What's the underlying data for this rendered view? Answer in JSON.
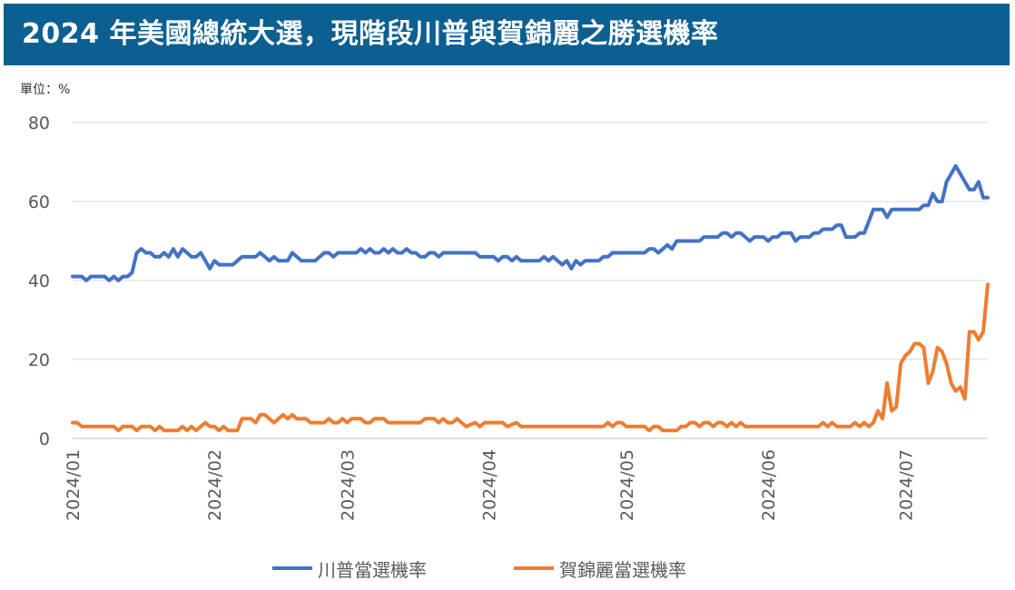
{
  "header": {
    "title": "2024 年美國總統大選，現階段川普與賀錦麗之勝選機率",
    "unit": "單位：%"
  },
  "colors": {
    "header_bg": "#0b5f91",
    "trump": "#4472c4",
    "harris": "#ed7d31"
  },
  "legend": {
    "trump": "川普當選機率",
    "harris": "賀錦麗當選機率"
  },
  "chart_data": {
    "type": "line",
    "x_unit": "day",
    "x_start": "2024/01/01",
    "x_ticks": [
      {
        "label": "2024/01",
        "day": 0
      },
      {
        "label": "2024/02",
        "day": 31
      },
      {
        "label": "2024/03",
        "day": 60
      },
      {
        "label": "2024/04",
        "day": 91
      },
      {
        "label": "2024/05",
        "day": 121
      },
      {
        "label": "2024/06",
        "day": 152
      },
      {
        "label": "2024/07",
        "day": 182
      }
    ],
    "ylim": [
      0,
      80
    ],
    "y_ticks": [
      0,
      20,
      40,
      60,
      80
    ],
    "grid": true,
    "legend_position": "bottom",
    "series": [
      {
        "name": "川普當選機率",
        "color": "#4472c4",
        "points": [
          [
            0,
            41
          ],
          [
            2,
            41
          ],
          [
            3,
            40
          ],
          [
            4,
            41
          ],
          [
            7,
            41
          ],
          [
            8,
            40
          ],
          [
            9,
            41
          ],
          [
            10,
            40
          ],
          [
            11,
            41
          ],
          [
            12,
            41
          ],
          [
            13,
            42
          ],
          [
            14,
            47
          ],
          [
            15,
            48
          ],
          [
            16,
            47
          ],
          [
            17,
            47
          ],
          [
            18,
            46
          ],
          [
            19,
            46
          ],
          [
            20,
            47
          ],
          [
            21,
            46
          ],
          [
            22,
            48
          ],
          [
            23,
            46
          ],
          [
            24,
            48
          ],
          [
            25,
            47
          ],
          [
            26,
            46
          ],
          [
            27,
            46
          ],
          [
            28,
            47
          ],
          [
            29,
            45
          ],
          [
            30,
            43
          ],
          [
            31,
            45
          ],
          [
            32,
            44
          ],
          [
            35,
            44
          ],
          [
            36,
            45
          ],
          [
            37,
            46
          ],
          [
            40,
            46
          ],
          [
            41,
            47
          ],
          [
            42,
            46
          ],
          [
            43,
            45
          ],
          [
            44,
            46
          ],
          [
            45,
            45
          ],
          [
            47,
            45
          ],
          [
            48,
            47
          ],
          [
            49,
            46
          ],
          [
            50,
            45
          ],
          [
            53,
            45
          ],
          [
            54,
            46
          ],
          [
            55,
            47
          ],
          [
            56,
            47
          ],
          [
            57,
            46
          ],
          [
            58,
            47
          ],
          [
            62,
            47
          ],
          [
            63,
            48
          ],
          [
            64,
            47
          ],
          [
            65,
            48
          ],
          [
            66,
            47
          ],
          [
            67,
            47
          ],
          [
            68,
            48
          ],
          [
            69,
            47
          ],
          [
            70,
            48
          ],
          [
            71,
            47
          ],
          [
            72,
            47
          ],
          [
            73,
            48
          ],
          [
            74,
            47
          ],
          [
            75,
            47
          ],
          [
            76,
            46
          ],
          [
            77,
            46
          ],
          [
            78,
            47
          ],
          [
            79,
            47
          ],
          [
            80,
            46
          ],
          [
            81,
            47
          ],
          [
            88,
            47
          ],
          [
            89,
            46
          ],
          [
            92,
            46
          ],
          [
            93,
            45
          ],
          [
            94,
            46
          ],
          [
            95,
            46
          ],
          [
            96,
            45
          ],
          [
            97,
            46
          ],
          [
            98,
            45
          ],
          [
            102,
            45
          ],
          [
            103,
            46
          ],
          [
            104,
            45
          ],
          [
            105,
            46
          ],
          [
            106,
            45
          ],
          [
            107,
            44
          ],
          [
            108,
            45
          ],
          [
            109,
            43
          ],
          [
            110,
            45
          ],
          [
            111,
            44
          ],
          [
            112,
            45
          ],
          [
            115,
            45
          ],
          [
            116,
            46
          ],
          [
            117,
            46
          ],
          [
            118,
            47
          ],
          [
            125,
            47
          ],
          [
            126,
            48
          ],
          [
            127,
            48
          ],
          [
            128,
            47
          ],
          [
            129,
            48
          ],
          [
            130,
            49
          ],
          [
            131,
            48
          ],
          [
            132,
            50
          ],
          [
            137,
            50
          ],
          [
            138,
            51
          ],
          [
            141,
            51
          ],
          [
            142,
            52
          ],
          [
            143,
            52
          ],
          [
            144,
            51
          ],
          [
            145,
            52
          ],
          [
            146,
            52
          ],
          [
            147,
            51
          ],
          [
            148,
            50
          ],
          [
            149,
            51
          ],
          [
            151,
            51
          ],
          [
            152,
            50
          ],
          [
            153,
            51
          ],
          [
            154,
            51
          ],
          [
            155,
            52
          ],
          [
            157,
            52
          ],
          [
            158,
            50
          ],
          [
            159,
            51
          ],
          [
            161,
            51
          ],
          [
            162,
            52
          ],
          [
            163,
            52
          ],
          [
            164,
            53
          ],
          [
            166,
            53
          ],
          [
            167,
            54
          ],
          [
            168,
            54
          ],
          [
            169,
            51
          ],
          [
            171,
            51
          ],
          [
            172,
            52
          ],
          [
            173,
            52
          ],
          [
            174,
            55
          ],
          [
            175,
            58
          ],
          [
            177,
            58
          ],
          [
            178,
            56
          ],
          [
            179,
            58
          ],
          [
            185,
            58
          ],
          [
            186,
            59
          ],
          [
            187,
            59
          ],
          [
            188,
            62
          ],
          [
            189,
            60
          ],
          [
            190,
            60
          ],
          [
            191,
            65
          ],
          [
            192,
            67
          ],
          [
            193,
            69
          ],
          [
            194,
            67
          ],
          [
            195,
            65
          ],
          [
            196,
            63
          ],
          [
            197,
            63
          ],
          [
            198,
            65
          ],
          [
            199,
            61
          ],
          [
            200,
            61
          ]
        ]
      },
      {
        "name": "賀錦麗當選機率",
        "color": "#ed7d31",
        "points": [
          [
            0,
            4
          ],
          [
            1,
            4
          ],
          [
            2,
            3
          ],
          [
            9,
            3
          ],
          [
            10,
            2
          ],
          [
            11,
            3
          ],
          [
            13,
            3
          ],
          [
            14,
            2
          ],
          [
            15,
            3
          ],
          [
            17,
            3
          ],
          [
            18,
            2
          ],
          [
            19,
            3
          ],
          [
            20,
            2
          ],
          [
            23,
            2
          ],
          [
            24,
            3
          ],
          [
            25,
            2
          ],
          [
            26,
            3
          ],
          [
            27,
            2
          ],
          [
            28,
            3
          ],
          [
            29,
            4
          ],
          [
            30,
            3
          ],
          [
            31,
            3
          ],
          [
            32,
            2
          ],
          [
            33,
            3
          ],
          [
            34,
            2
          ],
          [
            36,
            2
          ],
          [
            37,
            5
          ],
          [
            39,
            5
          ],
          [
            40,
            4
          ],
          [
            41,
            6
          ],
          [
            42,
            6
          ],
          [
            43,
            5
          ],
          [
            44,
            4
          ],
          [
            45,
            5
          ],
          [
            46,
            6
          ],
          [
            47,
            5
          ],
          [
            48,
            6
          ],
          [
            49,
            5
          ],
          [
            51,
            5
          ],
          [
            52,
            4
          ],
          [
            55,
            4
          ],
          [
            56,
            5
          ],
          [
            57,
            4
          ],
          [
            58,
            4
          ],
          [
            59,
            5
          ],
          [
            60,
            4
          ],
          [
            61,
            5
          ],
          [
            63,
            5
          ],
          [
            64,
            4
          ],
          [
            65,
            4
          ],
          [
            66,
            5
          ],
          [
            68,
            5
          ],
          [
            69,
            4
          ],
          [
            76,
            4
          ],
          [
            77,
            5
          ],
          [
            79,
            5
          ],
          [
            80,
            4
          ],
          [
            81,
            5
          ],
          [
            82,
            4
          ],
          [
            83,
            4
          ],
          [
            84,
            5
          ],
          [
            85,
            4
          ],
          [
            86,
            3
          ],
          [
            88,
            4
          ],
          [
            89,
            3
          ],
          [
            90,
            4
          ],
          [
            94,
            4
          ],
          [
            95,
            3
          ],
          [
            97,
            4
          ],
          [
            98,
            3
          ],
          [
            116,
            3
          ],
          [
            117,
            4
          ],
          [
            118,
            3
          ],
          [
            119,
            4
          ],
          [
            120,
            4
          ],
          [
            121,
            3
          ],
          [
            125,
            3
          ],
          [
            126,
            2
          ],
          [
            127,
            3
          ],
          [
            128,
            3
          ],
          [
            129,
            2
          ],
          [
            132,
            2
          ],
          [
            133,
            3
          ],
          [
            134,
            3
          ],
          [
            135,
            4
          ],
          [
            136,
            4
          ],
          [
            137,
            3
          ],
          [
            138,
            4
          ],
          [
            139,
            4
          ],
          [
            140,
            3
          ],
          [
            141,
            4
          ],
          [
            142,
            4
          ],
          [
            143,
            3
          ],
          [
            144,
            4
          ],
          [
            145,
            3
          ],
          [
            146,
            4
          ],
          [
            147,
            3
          ],
          [
            163,
            3
          ],
          [
            164,
            4
          ],
          [
            165,
            3
          ],
          [
            166,
            4
          ],
          [
            167,
            3
          ],
          [
            170,
            3
          ],
          [
            171,
            4
          ],
          [
            172,
            3
          ],
          [
            173,
            4
          ],
          [
            174,
            3
          ],
          [
            175,
            4
          ],
          [
            176,
            7
          ],
          [
            177,
            5
          ],
          [
            178,
            14
          ],
          [
            179,
            7
          ],
          [
            180,
            8
          ],
          [
            181,
            19
          ],
          [
            182,
            21
          ],
          [
            183,
            22
          ],
          [
            184,
            24
          ],
          [
            185,
            24
          ],
          [
            186,
            23
          ],
          [
            187,
            14
          ],
          [
            188,
            17
          ],
          [
            189,
            23
          ],
          [
            190,
            22
          ],
          [
            191,
            19
          ],
          [
            192,
            14
          ],
          [
            193,
            12
          ],
          [
            194,
            13
          ],
          [
            195,
            10
          ],
          [
            196,
            27
          ],
          [
            197,
            27
          ],
          [
            198,
            25
          ],
          [
            199,
            27
          ],
          [
            200,
            39
          ]
        ]
      }
    ]
  }
}
